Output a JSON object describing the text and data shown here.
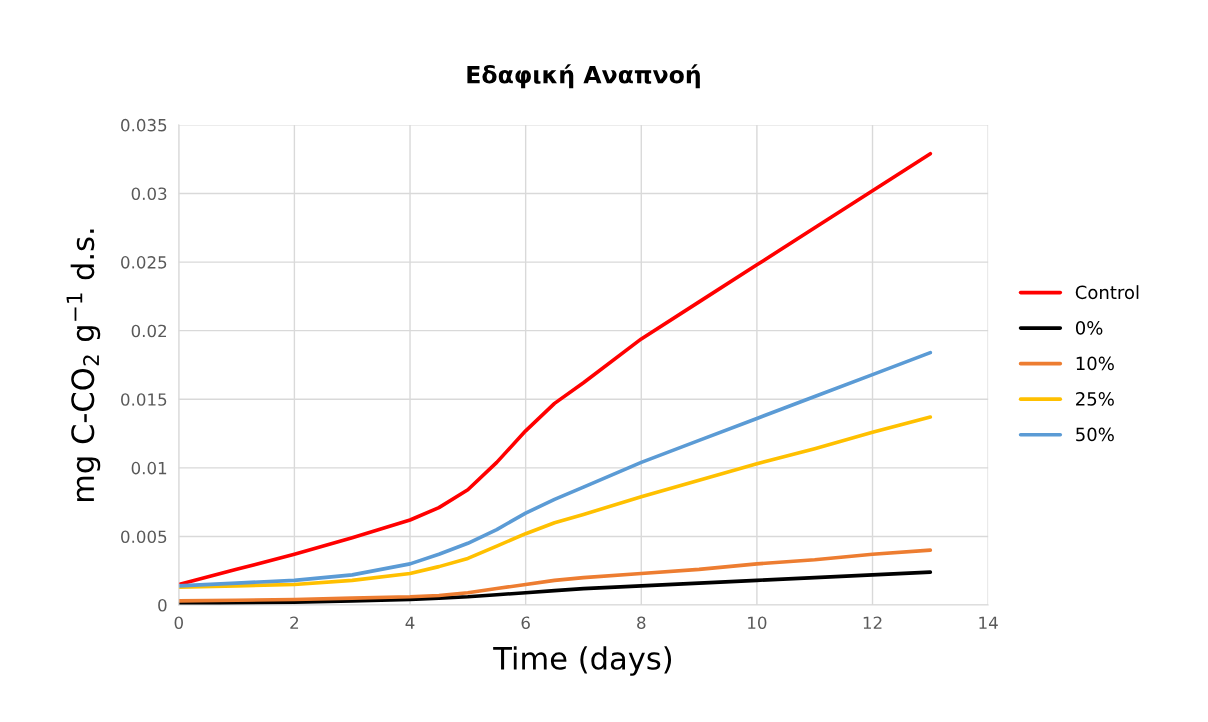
{
  "chart_data": {
    "type": "line",
    "title": "Εδαφική Αναπνοή",
    "xlabel": "Time (days)",
    "ylabel": "mg C-CO$_{2}$ g$^{−1}$ d.s.",
    "x": [
      0,
      1,
      2,
      3,
      4,
      4.5,
      5,
      5.5,
      6,
      6.5,
      7,
      8,
      9,
      10,
      11,
      12,
      13
    ],
    "series": [
      {
        "name": "Control",
        "color": "#ff0000",
        "values": [
          0.0015,
          0.0026,
          0.0037,
          0.0049,
          0.0062,
          0.0071,
          0.0084,
          0.0104,
          0.0127,
          0.0147,
          0.0162,
          0.0194,
          0.0221,
          0.0248,
          0.0275,
          0.0302,
          0.0329
        ]
      },
      {
        "name": "0%",
        "color": "#000000",
        "values": [
          0.0001,
          0.00015,
          0.0002,
          0.0003,
          0.0004,
          0.0005,
          0.0006,
          0.00075,
          0.0009,
          0.00105,
          0.0012,
          0.0014,
          0.0016,
          0.0018,
          0.002,
          0.0022,
          0.0024
        ]
      },
      {
        "name": "10%",
        "color": "#ed7d31",
        "values": [
          0.0003,
          0.00035,
          0.0004,
          0.0005,
          0.0006,
          0.0007,
          0.0009,
          0.0012,
          0.0015,
          0.0018,
          0.002,
          0.0023,
          0.0026,
          0.003,
          0.0033,
          0.0037,
          0.004
        ]
      },
      {
        "name": "25%",
        "color": "#ffc000",
        "values": [
          0.0013,
          0.0014,
          0.0015,
          0.0018,
          0.0023,
          0.0028,
          0.0034,
          0.0043,
          0.0052,
          0.006,
          0.0066,
          0.0079,
          0.0091,
          0.0103,
          0.0114,
          0.0126,
          0.0137
        ]
      },
      {
        "name": "50%",
        "color": "#5b9bd5",
        "values": [
          0.0014,
          0.0016,
          0.0018,
          0.0022,
          0.003,
          0.0037,
          0.0045,
          0.0055,
          0.0067,
          0.0077,
          0.0086,
          0.0104,
          0.012,
          0.0136,
          0.0152,
          0.0168,
          0.0184
        ]
      }
    ],
    "xlim": [
      0,
      14
    ],
    "xticks": [
      0,
      2,
      4,
      6,
      8,
      10,
      12,
      14
    ],
    "ylim": [
      0,
      0.035
    ],
    "yticks": [
      0,
      0.005,
      0.01,
      0.015,
      0.02,
      0.025,
      0.03,
      0.035
    ],
    "grid": true,
    "legend": "right",
    "marker": "none",
    "line_style": "solid"
  }
}
